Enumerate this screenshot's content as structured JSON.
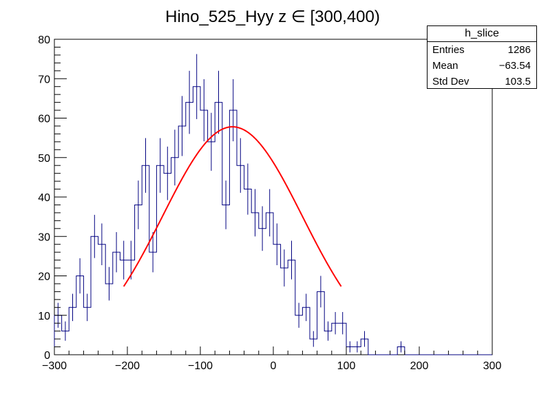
{
  "chart_data": {
    "type": "histogram",
    "title": "Hino_525_Hyy z  ∈ [300,400)",
    "xlabel": "",
    "ylabel": "",
    "xlim": [
      -300,
      300
    ],
    "ylim": [
      0,
      80
    ],
    "x_ticks": [
      -300,
      -200,
      -100,
      0,
      100,
      200,
      300
    ],
    "x_tick_labels": [
      "−300",
      "−200",
      "−100",
      "0",
      "100",
      "200",
      "300"
    ],
    "y_ticks": [
      0,
      10,
      20,
      30,
      40,
      50,
      60,
      70,
      80
    ],
    "y_tick_labels": [
      "0",
      "10",
      "20",
      "30",
      "40",
      "50",
      "60",
      "70",
      "80"
    ],
    "bin_width": 10,
    "bin_low_edges": [
      -300,
      -290,
      -280,
      -270,
      -260,
      -250,
      -240,
      -230,
      -220,
      -210,
      -200,
      -190,
      -180,
      -170,
      -160,
      -150,
      -140,
      -130,
      -120,
      -110,
      -100,
      -90,
      -80,
      -70,
      -60,
      -50,
      -40,
      -30,
      -20,
      -10,
      0,
      10,
      20,
      30,
      40,
      50,
      60,
      70,
      80,
      90,
      100,
      110,
      120,
      130,
      140,
      150,
      160,
      170,
      180,
      190,
      200,
      210,
      220,
      230,
      240,
      250,
      260,
      270,
      280,
      290
    ],
    "counts": [
      10,
      6,
      12,
      20,
      12,
      30,
      28,
      18,
      26,
      24,
      24,
      38,
      48,
      26,
      48,
      46,
      50,
      58,
      64,
      68,
      62,
      54,
      64,
      38,
      62,
      48,
      42,
      36,
      32,
      36,
      28,
      22,
      24,
      10,
      12,
      4,
      16,
      6,
      8,
      8,
      2,
      2,
      4,
      0,
      0,
      0,
      0,
      2,
      0,
      0,
      0,
      0,
      0,
      0,
      0,
      0,
      0,
      0,
      0,
      0
    ],
    "series_color": "#000080",
    "fit": {
      "type": "gaussian",
      "constant": 57.8,
      "mean": -56,
      "sigma": 96,
      "x_range": [
        -205,
        93
      ],
      "color": "#ff0000"
    },
    "stats_box": {
      "title": "h_slice",
      "entries_label": "Entries",
      "entries_value": "1286",
      "mean_label": "Mean",
      "mean_value": "−63.54",
      "stddev_label": "Std Dev",
      "stddev_value": "103.5"
    }
  }
}
